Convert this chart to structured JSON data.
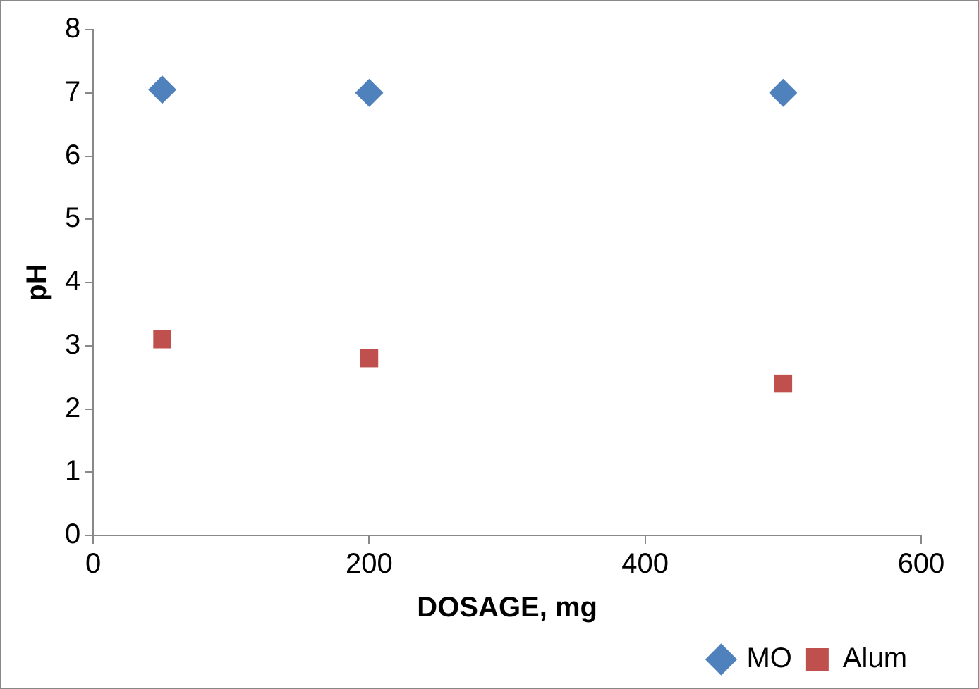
{
  "chart_data": {
    "type": "scatter",
    "xlabel": "DOSAGE, mg",
    "ylabel": "pH",
    "x": [
      50,
      200,
      500
    ],
    "series": [
      {
        "name": "MO",
        "color": "#4f81bd",
        "marker": "diamond",
        "values": [
          7.05,
          7,
          7
        ]
      },
      {
        "name": "Alum",
        "color": "#c0504d",
        "marker": "square",
        "values": [
          3.1,
          2.8,
          2.4
        ]
      }
    ],
    "xlim": [
      0,
      600
    ],
    "xticks": [
      0,
      200,
      400,
      600
    ],
    "ylim": [
      0,
      8
    ],
    "yticks": [
      0,
      1,
      2,
      3,
      4,
      5,
      6,
      7,
      8
    ],
    "grid": false,
    "legend": "bottom"
  }
}
